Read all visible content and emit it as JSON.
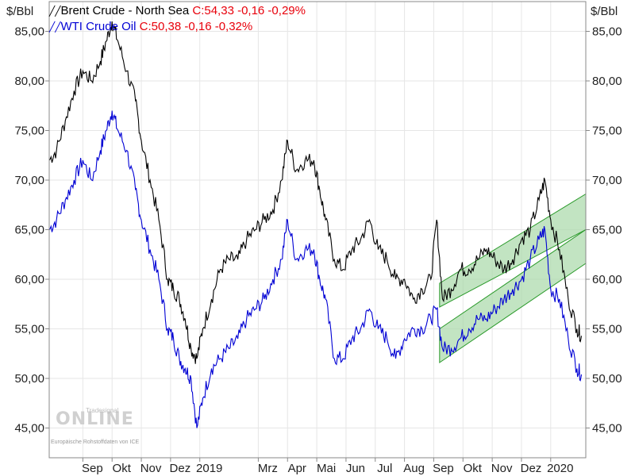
{
  "unit_left": "$/Bbl",
  "unit_right": "$/Bbl",
  "legend": [
    {
      "icon": "line-chart-icon",
      "name": "Brent Crude - North Sea",
      "close": "C:54,33 -0,16 -0,29%",
      "name_color": "#000000",
      "close_color": "#e8000b"
    },
    {
      "icon": "line-chart-icon",
      "name": "WTI Crude Oil",
      "close": "C:50,38 -0,16 -0,32%",
      "name_color": "#0000d4",
      "close_color": "#e8000b"
    }
  ],
  "watermark": {
    "brand": "Tradesignal",
    "logo": "ONLINE",
    "note": "Europäische Rohstoffdaten von ICE"
  },
  "colors": {
    "brent": "#000000",
    "wti": "#0000d4",
    "channel_fill": "#a8d8a8",
    "channel_edge": "#2a9a2a",
    "grid": "#e6e6e6",
    "axis": "#888888"
  },
  "chart_data": {
    "type": "line",
    "ylim": [
      42,
      88
    ],
    "yticks": [
      45,
      50,
      55,
      60,
      65,
      70,
      75,
      80,
      85
    ],
    "ytick_labels": [
      "45,00",
      "50,00",
      "55,00",
      "60,00",
      "65,00",
      "70,00",
      "75,00",
      "80,00",
      "85,00"
    ],
    "x_labels": [
      "Sep",
      "Okt",
      "Nov",
      "Dez",
      "2019",
      "Mrz",
      "Apr",
      "Mai",
      "Jun",
      "Jul",
      "Aug",
      "Sep",
      "Okt",
      "Nov",
      "Dez",
      "2020"
    ],
    "x_label_pos": [
      0,
      1,
      2,
      3,
      4,
      6,
      7,
      8,
      9,
      10,
      11,
      12,
      13,
      14,
      15,
      16
    ],
    "xlim": [
      -1.15,
      17.2
    ],
    "series": [
      {
        "name": "Brent Crude - North Sea",
        "x": [
          -1.15,
          -0.9,
          -0.6,
          -0.3,
          0,
          0.3,
          0.6,
          0.8,
          1.0,
          1.2,
          1.5,
          1.8,
          2.0,
          2.3,
          2.6,
          2.9,
          3.1,
          3.3,
          3.5,
          3.7,
          3.9,
          4.1,
          4.4,
          4.7,
          5.0,
          5.3,
          5.6,
          5.9,
          6.2,
          6.5,
          6.8,
          7.0,
          7.3,
          7.6,
          7.9,
          8.1,
          8.3,
          8.6,
          8.9,
          9.2,
          9.5,
          9.8,
          10.1,
          10.4,
          10.7,
          11.0,
          11.3,
          11.6,
          11.9,
          12.1,
          12.3,
          12.6,
          12.9,
          13.2,
          13.5,
          13.8,
          14.1,
          14.4,
          14.7,
          15.0,
          15.3,
          15.6,
          15.8,
          16.0,
          16.3,
          16.6,
          16.9,
          17.05
        ],
        "values": [
          72,
          73,
          76,
          79,
          81,
          80,
          82,
          84,
          86,
          84,
          81,
          78,
          74,
          70,
          66,
          60,
          59,
          58,
          56,
          53,
          52,
          55,
          58,
          61,
          62,
          62,
          64,
          65,
          66,
          67,
          70,
          74,
          71,
          72,
          72,
          69,
          66,
          62,
          61,
          63,
          64,
          66,
          63,
          62,
          60,
          60,
          58,
          59,
          60,
          66,
          58,
          59,
          61,
          61,
          62,
          63,
          62,
          61,
          62,
          64,
          65,
          68,
          70,
          66,
          63,
          58,
          55,
          54.3
        ]
      },
      {
        "name": "WTI Crude Oil",
        "x": [
          -1.15,
          -0.9,
          -0.6,
          -0.3,
          0,
          0.3,
          0.6,
          0.8,
          1.0,
          1.2,
          1.5,
          1.8,
          2.0,
          2.3,
          2.6,
          2.9,
          3.1,
          3.3,
          3.5,
          3.7,
          3.9,
          4.1,
          4.4,
          4.7,
          5.0,
          5.3,
          5.6,
          5.9,
          6.2,
          6.5,
          6.8,
          7.0,
          7.3,
          7.6,
          7.9,
          8.1,
          8.3,
          8.6,
          8.9,
          9.2,
          9.5,
          9.8,
          10.1,
          10.4,
          10.7,
          11.0,
          11.3,
          11.6,
          11.9,
          12.1,
          12.3,
          12.6,
          12.9,
          13.2,
          13.5,
          13.8,
          14.1,
          14.4,
          14.7,
          15.0,
          15.3,
          15.6,
          15.8,
          16.0,
          16.3,
          16.6,
          16.9,
          17.05
        ],
        "values": [
          65,
          66,
          68,
          70,
          72,
          70,
          73,
          75,
          77,
          75,
          73,
          69,
          66,
          63,
          60,
          55,
          54,
          52,
          51,
          50,
          45,
          48,
          51,
          52,
          53,
          54,
          56,
          57,
          58,
          60,
          62,
          66,
          62,
          63,
          63,
          60,
          58,
          52,
          52,
          54,
          55,
          57,
          55,
          54,
          52,
          54,
          55,
          55,
          56,
          57,
          53,
          53,
          54,
          55,
          56,
          56,
          57,
          58,
          59,
          60,
          62,
          64,
          65,
          59,
          58,
          54,
          51,
          50.4
        ]
      }
    ],
    "channels": [
      {
        "x": [
          12.2,
          17.2
        ],
        "lower": [
          57.2,
          65.0
        ],
        "upper": [
          59.6,
          68.6
        ]
      },
      {
        "x": [
          12.2,
          17.2
        ],
        "lower": [
          51.6,
          61.6
        ],
        "upper": [
          55.0,
          65.0
        ]
      }
    ]
  }
}
